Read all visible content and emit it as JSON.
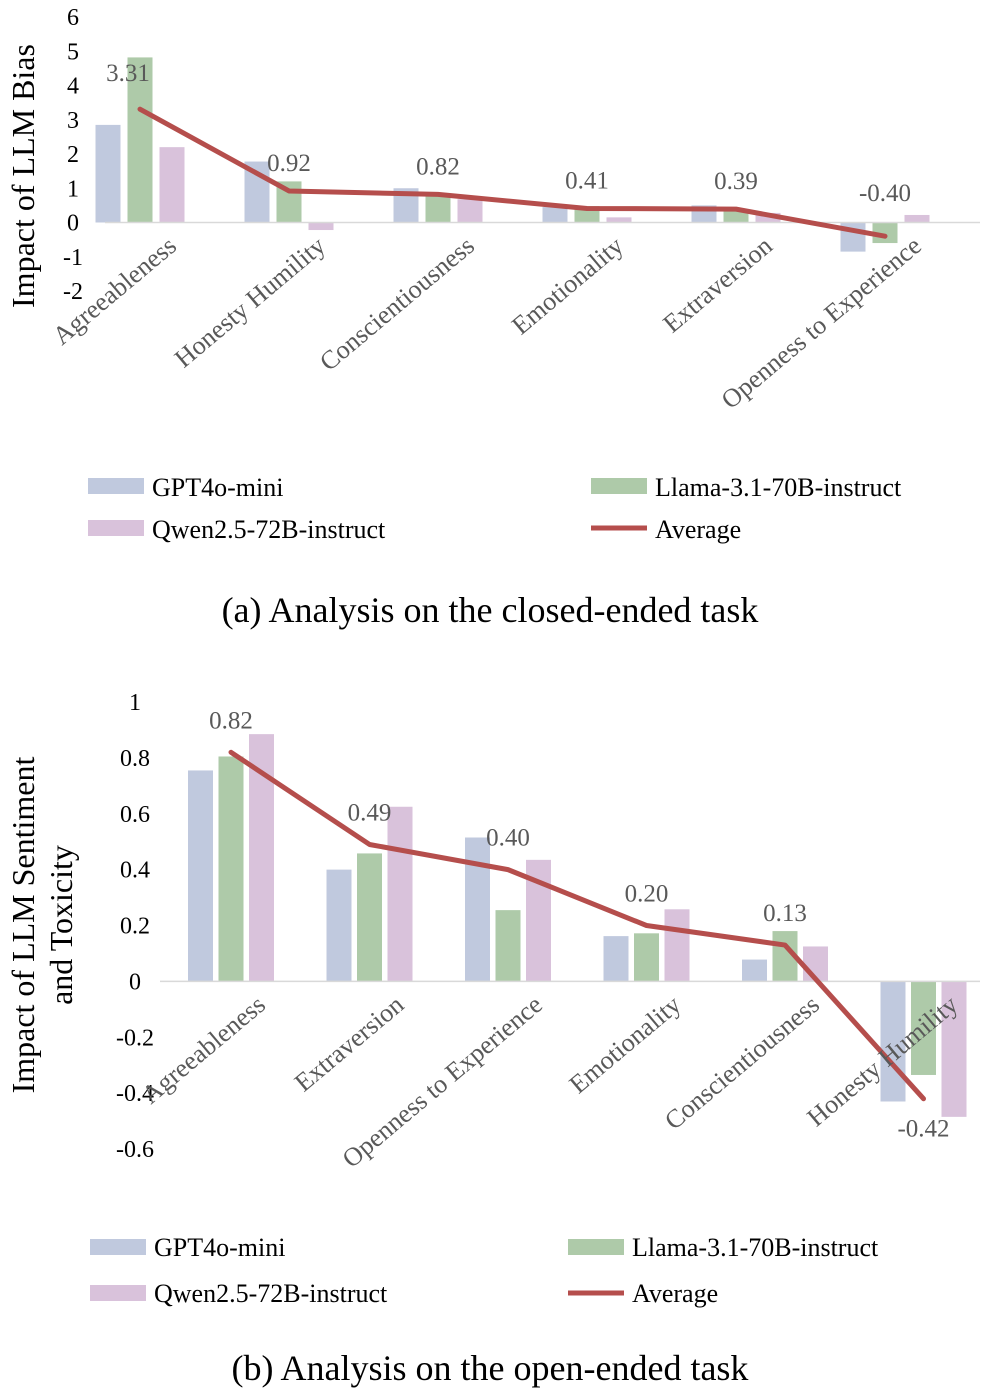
{
  "chart_data": [
    {
      "type": "bar",
      "caption": "(a) Analysis on the closed-ended task",
      "ylabel": "Impact of  LLM Bias",
      "ylim": [
        -2,
        6
      ],
      "yticks": [
        6,
        5,
        4,
        3,
        2,
        1,
        0,
        -1,
        -2
      ],
      "categories": [
        "Agreeableness",
        "Honesty Humility",
        "Conscientiousness",
        "Emotionality",
        "Extraversion",
        "Openness to Experience"
      ],
      "series": [
        {
          "name": "GPT4o-mini",
          "color": "#c0c9de",
          "values": [
            2.85,
            1.78,
            1.0,
            0.45,
            0.5,
            -0.85
          ]
        },
        {
          "name": "Llama-3.1-70B-instruct",
          "color": "#aecaa9",
          "values": [
            4.82,
            1.2,
            0.85,
            0.48,
            0.38,
            -0.6
          ]
        },
        {
          "name": "Qwen2.5-72B-instruct",
          "color": "#d9c2db",
          "values": [
            2.2,
            -0.22,
            0.68,
            0.15,
            0.28,
            0.22
          ]
        }
      ],
      "average": {
        "name": "Average",
        "color": "#b54e4c",
        "values": [
          3.31,
          0.92,
          0.82,
          0.41,
          0.39,
          -0.4
        ],
        "labels": [
          "3.31",
          "0.92",
          "0.82",
          "0.41",
          "0.39",
          "-0.40"
        ]
      },
      "ytick_labels": [
        "6",
        "5",
        "4",
        "3",
        "2",
        "1",
        "0",
        "-1",
        "-2"
      ]
    },
    {
      "type": "bar",
      "caption": "(b) Analysis on the open-ended task",
      "ylabel_lines": [
        "Impact of  LLM Sentiment",
        "and Toxicity"
      ],
      "ylim": [
        -0.6,
        1
      ],
      "yticks": [
        1,
        0.8,
        0.6,
        0.4,
        0.2,
        0,
        -0.2,
        -0.4,
        -0.6
      ],
      "categories": [
        "Agreeableness",
        "Extraversion",
        "Openness to Experience",
        "Emotionality",
        "Conscientiousness",
        "Honesty Humility"
      ],
      "series": [
        {
          "name": "GPT4o-mini",
          "color": "#c0c9de",
          "values": [
            0.755,
            0.4,
            0.515,
            0.162,
            0.078,
            -0.43
          ]
        },
        {
          "name": "Llama-3.1-70B-instruct",
          "color": "#aecaa9",
          "values": [
            0.805,
            0.458,
            0.255,
            0.172,
            0.18,
            -0.335
          ]
        },
        {
          "name": "Qwen2.5-72B-instruct",
          "color": "#d9c2db",
          "values": [
            0.885,
            0.625,
            0.435,
            0.258,
            0.125,
            -0.485
          ]
        }
      ],
      "average": {
        "name": "Average",
        "color": "#b54e4c",
        "values": [
          0.82,
          0.49,
          0.4,
          0.2,
          0.13,
          -0.42
        ],
        "labels": [
          "0.82",
          "0.49",
          "0.40",
          "0.20",
          "0.13",
          "-0.42"
        ]
      },
      "ytick_labels": [
        "1",
        "0.8",
        "0.6",
        "0.4",
        "0.2",
        "0",
        "-0.2",
        "-0.4",
        "-0.6"
      ]
    }
  ]
}
